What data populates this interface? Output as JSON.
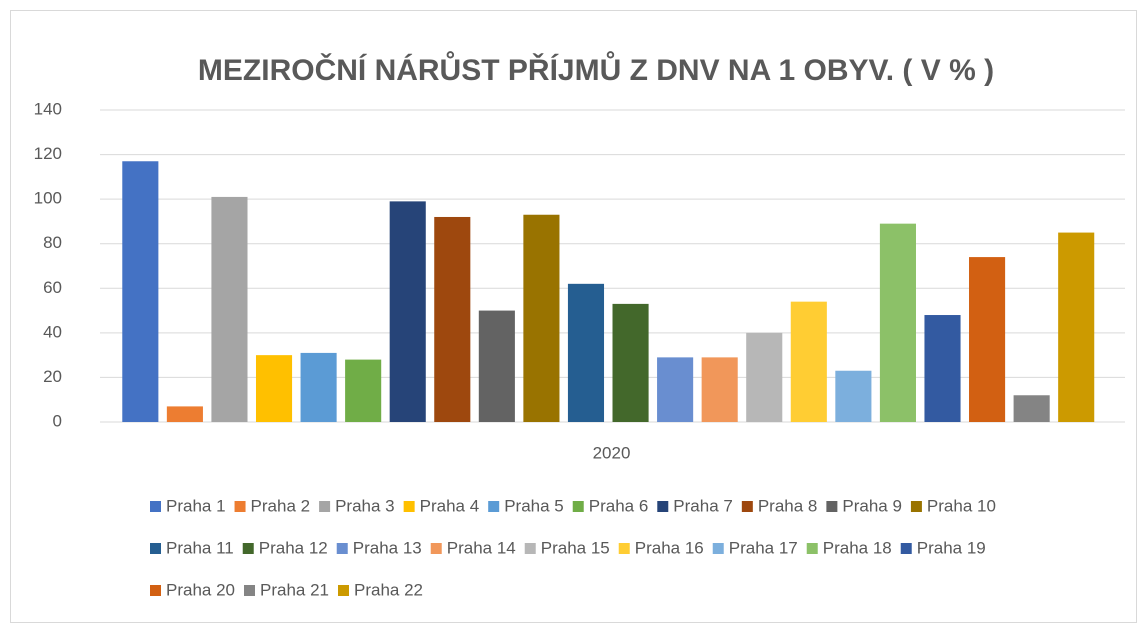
{
  "chart_data": {
    "type": "bar",
    "title": "MEZIROČNÍ NÁRŮST PŘÍJMŮ Z DNV NA 1 OBYV. ( V % )",
    "categories": [
      "2020"
    ],
    "series": [
      {
        "name": "Praha 1",
        "color": "#4472c4",
        "values": [
          117
        ]
      },
      {
        "name": "Praha 2",
        "color": "#ed7d31",
        "values": [
          7
        ]
      },
      {
        "name": "Praha 3",
        "color": "#a5a5a5",
        "values": [
          101
        ]
      },
      {
        "name": "Praha 4",
        "color": "#ffc000",
        "values": [
          30
        ]
      },
      {
        "name": "Praha 5",
        "color": "#5b9bd5",
        "values": [
          31
        ]
      },
      {
        "name": "Praha 6",
        "color": "#70ad47",
        "values": [
          28
        ]
      },
      {
        "name": "Praha 7",
        "color": "#264478",
        "values": [
          99
        ]
      },
      {
        "name": "Praha 8",
        "color": "#9e480e",
        "values": [
          92
        ]
      },
      {
        "name": "Praha 9",
        "color": "#636363",
        "values": [
          50
        ]
      },
      {
        "name": "Praha 10",
        "color": "#997300",
        "values": [
          93
        ]
      },
      {
        "name": "Praha 11",
        "color": "#255e91",
        "values": [
          62
        ]
      },
      {
        "name": "Praha 12",
        "color": "#43682b",
        "values": [
          53
        ]
      },
      {
        "name": "Praha 13",
        "color": "#698ed0",
        "values": [
          29
        ]
      },
      {
        "name": "Praha 14",
        "color": "#f1975a",
        "values": [
          29
        ]
      },
      {
        "name": "Praha 15",
        "color": "#b7b7b7",
        "values": [
          40
        ]
      },
      {
        "name": "Praha 16",
        "color": "#ffcd33",
        "values": [
          54
        ]
      },
      {
        "name": "Praha 17",
        "color": "#7cafdd",
        "values": [
          23
        ]
      },
      {
        "name": "Praha 18",
        "color": "#8cc168",
        "values": [
          89
        ]
      },
      {
        "name": "Praha 19",
        "color": "#335aa1",
        "values": [
          48
        ]
      },
      {
        "name": "Praha 20",
        "color": "#d26012",
        "values": [
          74
        ]
      },
      {
        "name": "Praha 21",
        "color": "#848484",
        "values": [
          12
        ]
      },
      {
        "name": "Praha 22",
        "color": "#cc9a00",
        "values": [
          85
        ]
      }
    ],
    "ylim": [
      0,
      140
    ],
    "yticks": [
      0,
      20,
      40,
      60,
      80,
      100,
      120,
      140
    ],
    "grid": true,
    "legend": "bottom"
  }
}
